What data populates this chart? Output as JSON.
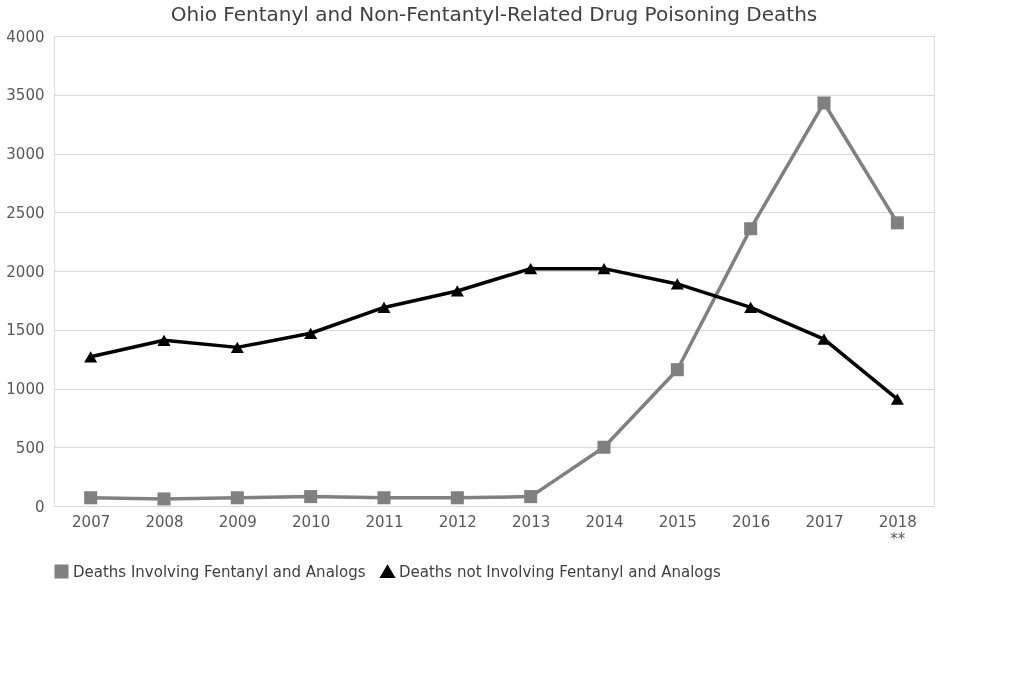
{
  "chart_data": {
    "type": "line",
    "title": "Ohio Fentanyl and Non-Fentantyl-Related Drug Poisoning Deaths",
    "categories": [
      "2007",
      "2008",
      "2009",
      "2010",
      "2011",
      "2012",
      "2013",
      "2014",
      "2015",
      "2016",
      "2017",
      "2018\n**"
    ],
    "series": [
      {
        "name": "Deaths Involving Fentanyl and Analogs",
        "color": "#808080",
        "marker": "square",
        "values": [
          70,
          60,
          70,
          80,
          70,
          70,
          80,
          500,
          1160,
          2360,
          3430,
          2410
        ]
      },
      {
        "name": "Deaths not Involving Fentanyl and Analogs",
        "color": "#000000",
        "marker": "triangle",
        "values": [
          1270,
          1410,
          1350,
          1470,
          1690,
          1830,
          2020,
          2020,
          1890,
          1690,
          1420,
          910
        ]
      }
    ],
    "ylim": [
      0,
      4000
    ],
    "yticks": [
      0,
      500,
      1000,
      1500,
      2000,
      2500,
      3000,
      3500,
      4000
    ],
    "grid": "y",
    "legend": "bottom",
    "line_style": "solid"
  }
}
